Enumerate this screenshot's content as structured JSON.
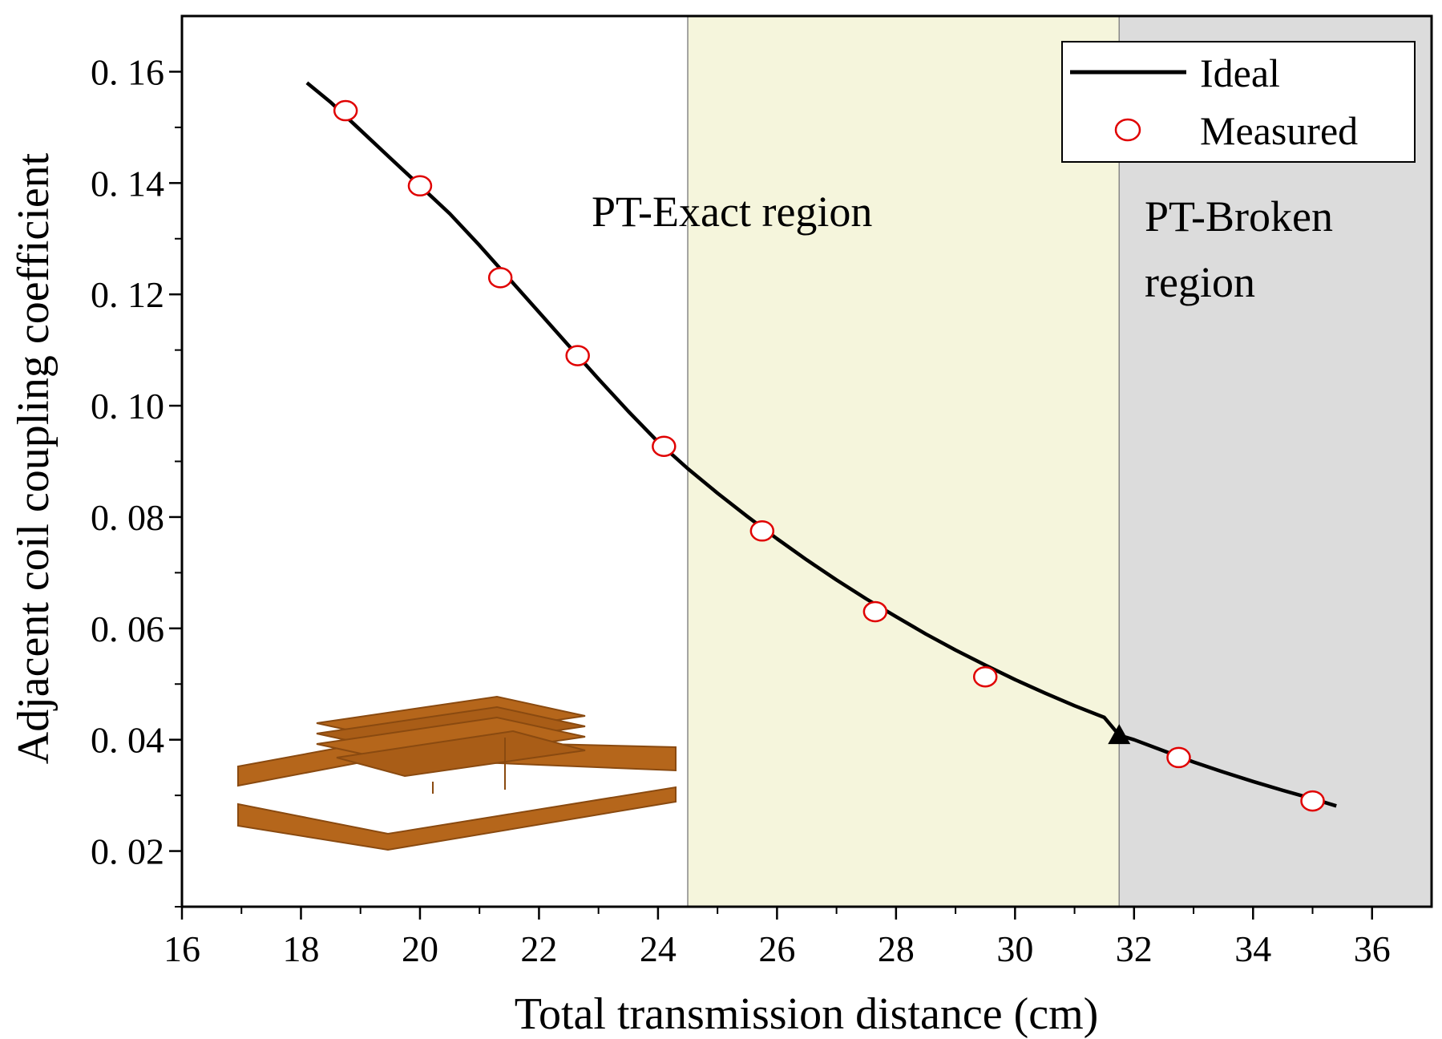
{
  "chart_data": {
    "type": "line",
    "xlabel": "Total transmission distance (cm)",
    "ylabel": "Adjacent coil coupling coefficient",
    "xlim": [
      16,
      37
    ],
    "ylim": [
      0.01,
      0.17
    ],
    "xticks": [
      16,
      18,
      20,
      22,
      24,
      26,
      28,
      30,
      32,
      34,
      36
    ],
    "xtick_labels": [
      "16",
      "18",
      "20",
      "22",
      "24",
      "26",
      "28",
      "30",
      "32",
      "34",
      "36"
    ],
    "yticks": [
      0.02,
      0.04,
      0.06,
      0.08,
      0.1,
      0.12,
      0.14,
      0.16
    ],
    "ytick_labels": [
      "0. 02",
      "0. 04",
      "0. 06",
      "0. 08",
      "0. 10",
      "0. 12",
      "0. 14",
      "0. 16"
    ],
    "grid": false,
    "legend_position": "top-right",
    "series": [
      {
        "name": "Ideal",
        "style": "line",
        "color": "#000000",
        "x": [
          18.1,
          18.5,
          19.0,
          19.5,
          20.0,
          20.5,
          21.0,
          21.5,
          22.0,
          22.5,
          23.0,
          23.5,
          24.0,
          24.5,
          25.0,
          25.5,
          26.0,
          26.5,
          27.0,
          27.5,
          28.0,
          28.5,
          29.0,
          29.5,
          30.0,
          30.5,
          31.0,
          31.5,
          31.75,
          32.0,
          32.5,
          33.0,
          33.5,
          34.0,
          34.5,
          35.0,
          35.4
        ],
        "y": [
          0.158,
          0.1545,
          0.1495,
          0.1445,
          0.1395,
          0.1345,
          0.1288,
          0.1228,
          0.1168,
          0.1108,
          0.1048,
          0.099,
          0.0935,
          0.0887,
          0.0843,
          0.0801,
          0.0761,
          0.0723,
          0.0687,
          0.0653,
          0.0621,
          0.059,
          0.0561,
          0.0534,
          0.0508,
          0.0484,
          0.0461,
          0.044,
          0.0408,
          0.04,
          0.038,
          0.036,
          0.0342,
          0.0325,
          0.0309,
          0.0294,
          0.0281
        ]
      },
      {
        "name": "Measured",
        "style": "marker",
        "marker": "open-circle",
        "color": "#e00000",
        "x": [
          18.75,
          20.0,
          21.35,
          22.65,
          24.1,
          25.75,
          27.65,
          29.5,
          32.75,
          35.0
        ],
        "y": [
          0.153,
          0.1395,
          0.123,
          0.109,
          0.0927,
          0.0775,
          0.063,
          0.0513,
          0.0368,
          0.029
        ]
      }
    ],
    "transition_point": {
      "x": 31.75,
      "y": 0.0408,
      "marker": "filled-triangle"
    },
    "regions": [
      {
        "name": "PT-Exact region",
        "lines": [
          "PT-Exact region"
        ],
        "x_range": [
          24.5,
          31.75
        ],
        "color": "#f5f5dc"
      },
      {
        "name": "PT-Broken region",
        "lines": [
          "PT-Broken",
          "region"
        ],
        "x_range": [
          31.75,
          37
        ],
        "color": "#dcdcdc"
      }
    ],
    "inset": "coil-structure-illustration"
  },
  "colors": {
    "coil_fill": "#b5661b",
    "coil_edge": "#8a4a10"
  }
}
